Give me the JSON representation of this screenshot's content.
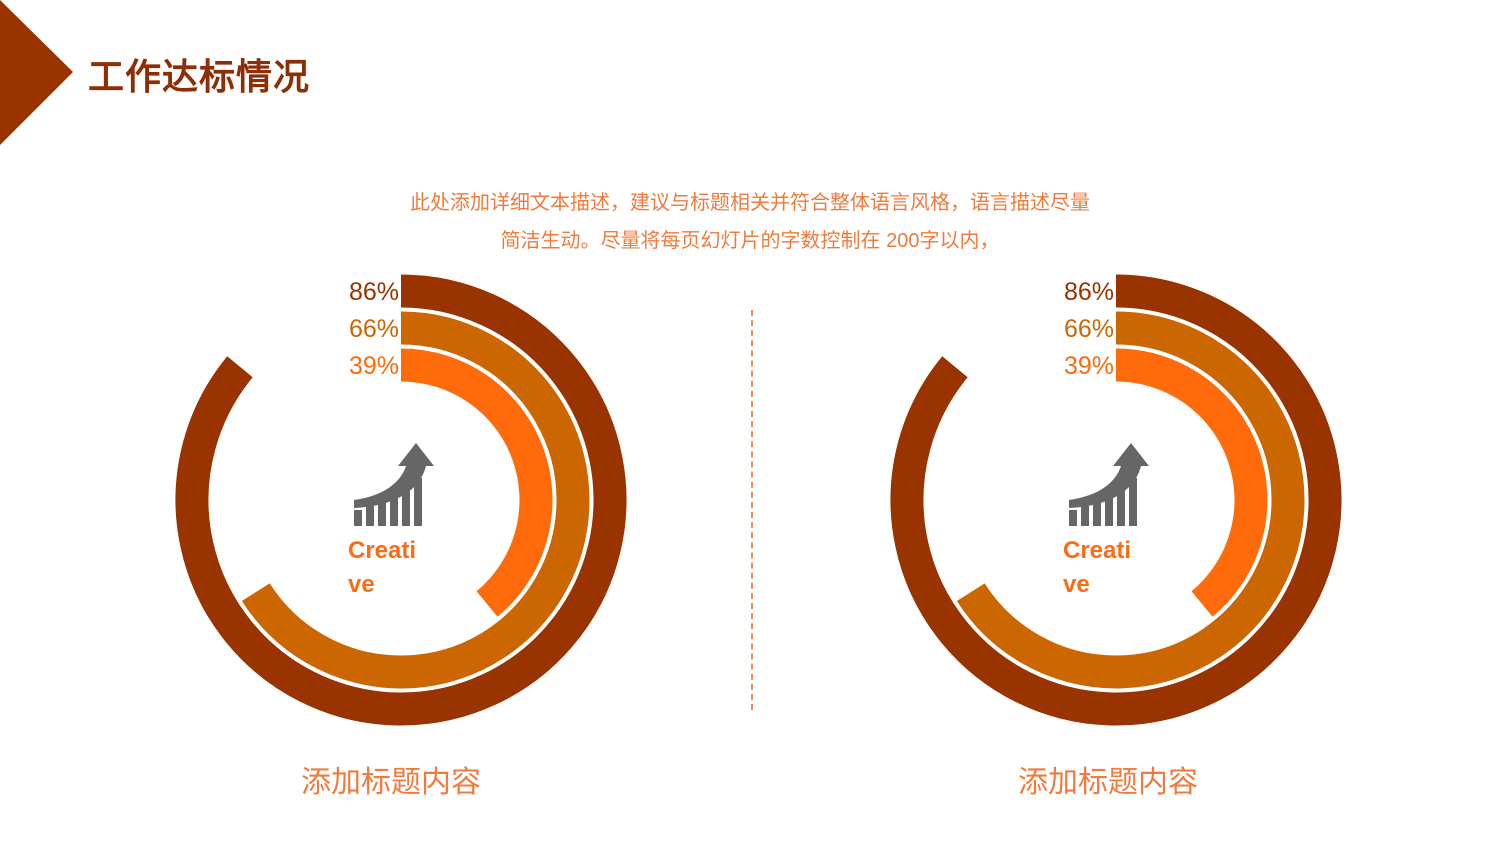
{
  "header": {
    "title": "工作达标情况",
    "accent_color": "#993300"
  },
  "description": {
    "line1": "此处添加详细文本描述，建议与标题相关并符合整体语言风格，语言描述尽量",
    "line2": "简洁生动。尽量将每页幻灯片的字数控制在  200字以内，"
  },
  "chart_data": [
    {
      "type": "radial-bar",
      "series": [
        {
          "value": 86,
          "label": "86%",
          "color": "#993300"
        },
        {
          "value": 66,
          "label": "66%",
          "color": "#cc6600"
        },
        {
          "value": 39,
          "label": "39%",
          "color": "#ff6a0a"
        }
      ],
      "center_icon": "growth-chart-arrow-icon",
      "center_text": [
        "Creati",
        "ve"
      ],
      "caption": "添加标题内容"
    },
    {
      "type": "radial-bar",
      "series": [
        {
          "value": 86,
          "label": "86%",
          "color": "#993300"
        },
        {
          "value": 66,
          "label": "66%",
          "color": "#cc6600"
        },
        {
          "value": 39,
          "label": "39%",
          "color": "#ff6a0a"
        }
      ],
      "center_icon": "growth-chart-arrow-icon",
      "center_text": [
        "Creati",
        "ve"
      ],
      "caption": "添加标题内容"
    }
  ]
}
